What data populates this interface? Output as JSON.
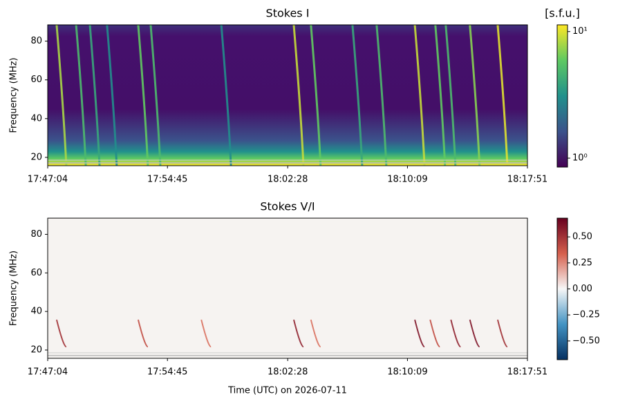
{
  "chart_data": [
    {
      "type": "heatmap",
      "title": "Stokes I",
      "ylabel": "Frequency (MHz)",
      "xlim": [
        "17:47:04",
        "18:17:51"
      ],
      "xticks": [
        "17:47:04",
        "17:54:45",
        "18:02:28",
        "18:10:09",
        "18:17:51"
      ],
      "ylim": [
        15.7,
        88.4
      ],
      "yticks": [
        20,
        40,
        60,
        80
      ],
      "colorbar": {
        "label": "[s.f.u.]",
        "log": true,
        "colormap": [
          "#440154",
          "#3b528b",
          "#21918c",
          "#5ec962",
          "#fde725"
        ],
        "clim": [
          0.85,
          11.3
        ],
        "ticks": [
          {
            "value": 1,
            "label": "10⁰"
          },
          {
            "value": 10,
            "label": "10¹"
          }
        ]
      },
      "bursts": {
        "x": [
          "17:48:05",
          "17:49:20",
          "17:50:13",
          "17:51:19",
          "17:53:19",
          "17:54:07",
          "17:58:39",
          "18:03:18",
          "18:04:24",
          "18:07:04",
          "18:08:37",
          "18:11:04",
          "18:12:23",
          "18:13:03",
          "18:14:36",
          "18:16:23"
        ],
        "values": [
          8,
          5,
          4,
          3,
          6,
          5,
          3,
          9,
          6,
          4,
          5,
          9,
          6,
          5,
          7,
          10
        ]
      }
    },
    {
      "type": "heatmap",
      "title": "Stokes V/I",
      "ylabel": "Frequency (MHz)",
      "xlabel": "Time (UTC) on 2026-07-11",
      "xlim": [
        "17:47:04",
        "18:17:51"
      ],
      "xticks": [
        "17:47:04",
        "17:54:45",
        "18:02:28",
        "18:10:09",
        "18:17:51"
      ],
      "ylim": [
        15.7,
        88.4
      ],
      "yticks": [
        20,
        40,
        60,
        80
      ],
      "colorbar": {
        "log": false,
        "colormap": [
          "#053061",
          "#4393c3",
          "#f7f7f7",
          "#d6604d",
          "#67001f"
        ],
        "clim": [
          -0.68,
          0.68
        ],
        "ticks": [
          {
            "value": -0.5,
            "label": "−0.50"
          },
          {
            "value": -0.25,
            "label": "−0.25"
          },
          {
            "value": 0,
            "label": "0.00"
          },
          {
            "value": 0.25,
            "label": "0.25"
          },
          {
            "value": 0.5,
            "label": "0.50"
          }
        ]
      },
      "bursts": {
        "x": [
          "17:48:05",
          "17:53:19",
          "17:57:22",
          "18:03:18",
          "18:04:24",
          "18:11:04",
          "18:12:03",
          "18:13:23",
          "18:14:36",
          "18:16:23"
        ],
        "values": [
          0.5,
          0.4,
          0.3,
          0.55,
          0.3,
          0.6,
          0.4,
          0.55,
          0.6,
          0.5
        ]
      }
    }
  ]
}
